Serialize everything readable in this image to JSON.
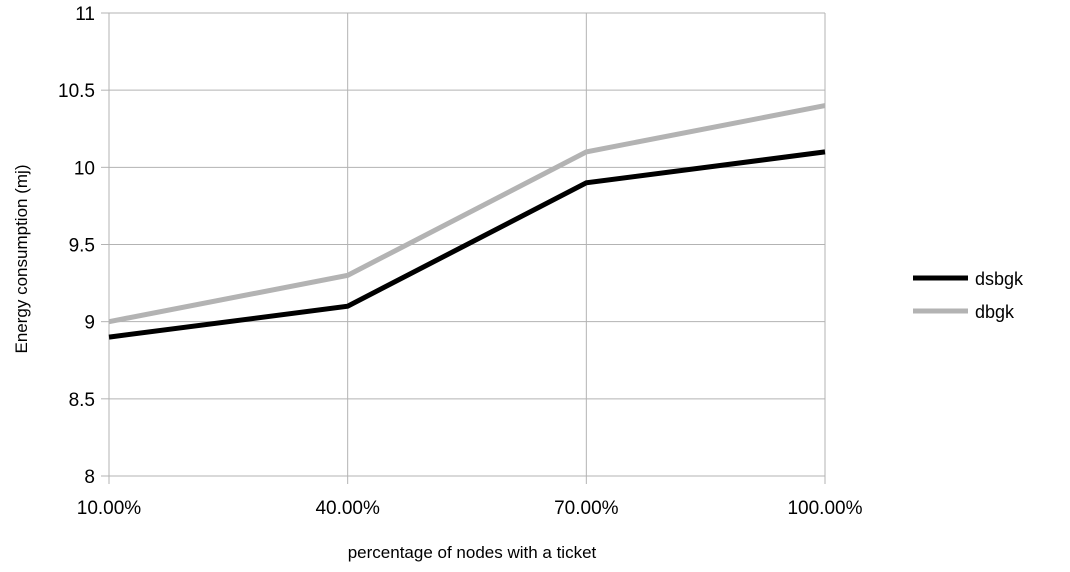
{
  "chart_data": {
    "type": "line",
    "title": "",
    "xlabel": "percentage of nodes with a ticket",
    "ylabel": "Energy consumption (mj)",
    "categories": [
      "10.00%",
      "40.00%",
      "70.00%",
      "100.00%"
    ],
    "ylim": [
      8,
      11
    ],
    "yticks": [
      8,
      8.5,
      9,
      9.5,
      10,
      10.5,
      11
    ],
    "ytick_labels": [
      "8",
      "8.5",
      "9",
      "9.5",
      "10",
      "10.5",
      "11"
    ],
    "grid": true,
    "legend_position": "right",
    "series": [
      {
        "name": "dsbgk",
        "color": "#000000",
        "values": [
          8.9,
          9.1,
          9.9,
          10.1
        ]
      },
      {
        "name": "dbgk",
        "color": "#b3b3b3",
        "values": [
          9.0,
          9.3,
          10.1,
          10.4
        ]
      }
    ]
  }
}
